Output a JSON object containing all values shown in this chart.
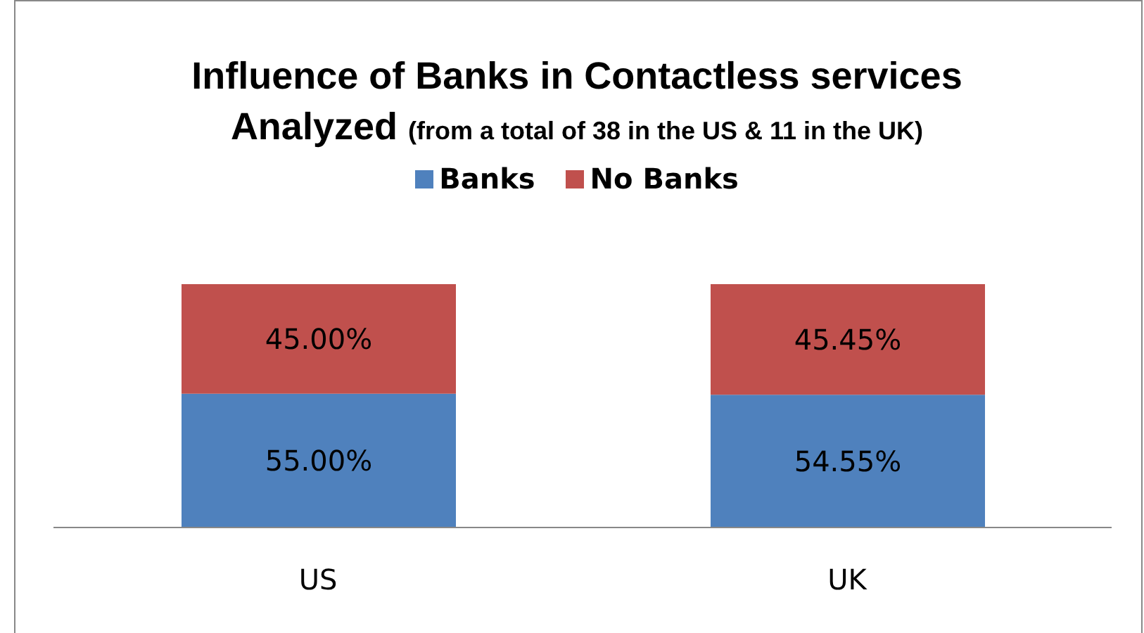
{
  "chart_data": {
    "type": "bar",
    "title": "Influence of Banks in Contactless services Analyzed",
    "subtitle": "(from a total of 38 in the US & 11 in the UK)",
    "categories": [
      "US",
      "UK"
    ],
    "stacked": true,
    "legend": "top",
    "grid": false,
    "series": [
      {
        "name": "Banks",
        "color": "#4f81bd",
        "values": [
          55,
          54.55
        ],
        "value_labels": [
          "55.00%",
          "54.55%"
        ]
      },
      {
        "name": "No Banks",
        "color": "#c0504d",
        "values": [
          45,
          45.45
        ],
        "value_labels": [
          "45.00%",
          "45.45%"
        ]
      }
    ]
  }
}
